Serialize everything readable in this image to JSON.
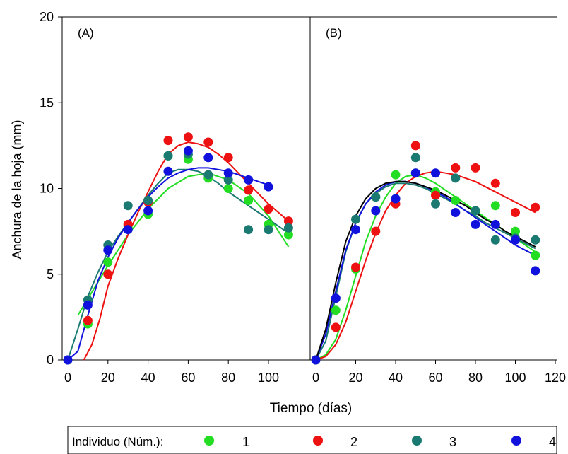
{
  "chart_data": [
    {
      "type": "scatter",
      "panel_label": "(A)",
      "xlim": [
        -5,
        120
      ],
      "ylim": [
        0,
        20
      ],
      "x_ticks": [
        "0",
        "20",
        "40",
        "60",
        "80",
        "100"
      ],
      "y_ticks": [
        "0",
        "5",
        "10",
        "15",
        "20"
      ],
      "series": [
        {
          "name": "1",
          "color": "#22dd22",
          "x": [
            0,
            10,
            20,
            30,
            40,
            50,
            60,
            70,
            80,
            90,
            100,
            110
          ],
          "y": [
            0,
            2.1,
            5.7,
            7.8,
            8.5,
            11.9,
            11.7,
            10.6,
            10.0,
            9.3,
            7.9,
            7.3
          ],
          "fit_x": [
            5,
            20,
            30,
            40,
            50,
            60,
            70,
            80,
            90,
            100,
            110
          ],
          "fit_y": [
            2.6,
            5.5,
            7.3,
            8.8,
            10.0,
            10.7,
            10.9,
            10.5,
            9.7,
            8.4,
            6.6
          ]
        },
        {
          "name": "2",
          "color": "#ee1111",
          "x": [
            10,
            20,
            30,
            40,
            50,
            60,
            70,
            80,
            90,
            100,
            110
          ],
          "y": [
            2.3,
            5.0,
            7.9,
            9.2,
            12.8,
            13.0,
            12.7,
            11.8,
            9.9,
            8.8,
            8.1
          ],
          "fit_x": [
            8,
            12,
            16,
            20,
            25,
            30,
            35,
            40,
            45,
            50,
            55,
            60,
            65,
            70,
            75,
            80,
            85,
            90,
            95,
            100,
            105,
            110
          ],
          "fit_y": [
            0,
            0.9,
            2.4,
            4.3,
            5.9,
            7.3,
            8.6,
            9.8,
            11.0,
            12.0,
            12.5,
            12.7,
            12.6,
            12.4,
            12.0,
            11.5,
            10.9,
            10.3,
            9.7,
            9.1,
            8.6,
            8.1
          ]
        },
        {
          "name": "3",
          "color": "#1a7a72",
          "x": [
            0,
            10,
            20,
            30,
            40,
            50,
            60,
            70,
            80,
            90,
            100,
            110
          ],
          "y": [
            0,
            3.5,
            6.7,
            9.0,
            9.3,
            11.9,
            12.0,
            10.8,
            10.5,
            7.6,
            7.6,
            7.7
          ],
          "fit_x": [
            0,
            5,
            10,
            15,
            20,
            25,
            30,
            35,
            40,
            45,
            50,
            55,
            60,
            65,
            70,
            75,
            80,
            85,
            90,
            95,
            100,
            105,
            110
          ],
          "fit_y": [
            0,
            1.8,
            3.7,
            5.1,
            6.3,
            7.2,
            8.0,
            8.8,
            9.6,
            10.3,
            10.9,
            11.1,
            11.1,
            11.0,
            10.7,
            10.3,
            9.8,
            9.4,
            9.0,
            8.6,
            8.2,
            7.8,
            7.4
          ]
        },
        {
          "name": "4",
          "color": "#1111dd",
          "x": [
            0,
            10,
            20,
            30,
            40,
            50,
            60,
            70,
            80,
            90,
            100
          ],
          "y": [
            0,
            3.2,
            6.4,
            7.6,
            8.7,
            11.0,
            12.2,
            11.8,
            10.9,
            10.5,
            10.1
          ],
          "fit_x": [
            0,
            5,
            10,
            15,
            20,
            25,
            30,
            35,
            40,
            45,
            50,
            55,
            60,
            65,
            70,
            75,
            80,
            85,
            90,
            95,
            100
          ],
          "fit_y": [
            0,
            0.5,
            2.6,
            4.6,
            6.0,
            7.1,
            8.0,
            8.8,
            9.5,
            10.1,
            10.6,
            10.9,
            11.1,
            11.2,
            11.2,
            11.1,
            11.0,
            10.8,
            10.6,
            10.4,
            10.2
          ]
        }
      ]
    },
    {
      "type": "scatter",
      "panel_label": "(B)",
      "xlim": [
        0,
        125
      ],
      "ylim": [
        0,
        20
      ],
      "x_ticks": [
        "0",
        "20",
        "40",
        "60",
        "80",
        "100",
        "120"
      ],
      "series": [
        {
          "name": "1",
          "color": "#22dd22",
          "x": [
            0,
            10,
            20,
            30,
            40,
            50,
            60,
            70,
            80,
            90,
            100,
            110
          ],
          "y": [
            0,
            2.9,
            5.3,
            9.5,
            10.8,
            10.9,
            9.8,
            9.3,
            8.7,
            9.0,
            7.5,
            6.1
          ],
          "fit_x": [
            0,
            5,
            10,
            15,
            20,
            25,
            30,
            35,
            40,
            45,
            50,
            55,
            60,
            65,
            70,
            75,
            80,
            85,
            90,
            95,
            100,
            105,
            110
          ],
          "fit_y": [
            0,
            0.3,
            1.2,
            2.9,
            4.9,
            6.9,
            8.4,
            9.5,
            10.3,
            10.7,
            10.8,
            10.6,
            10.3,
            9.9,
            9.5,
            9.1,
            8.7,
            8.3,
            7.9,
            7.5,
            7.1,
            6.7,
            6.3
          ]
        },
        {
          "name": "2",
          "color": "#ee1111",
          "x": [
            10,
            20,
            30,
            40,
            50,
            60,
            70,
            80,
            90,
            100,
            110
          ],
          "y": [
            1.9,
            5.4,
            7.5,
            9.1,
            12.5,
            9.6,
            11.2,
            11.2,
            10.3,
            8.6,
            8.9
          ],
          "fit_x": [
            0,
            5,
            10,
            15,
            20,
            25,
            30,
            35,
            40,
            45,
            50,
            55,
            60,
            65,
            70,
            75,
            80,
            85,
            90,
            95,
            100,
            105,
            110
          ],
          "fit_y": [
            0,
            0.2,
            0.9,
            2.2,
            4.0,
            5.8,
            7.4,
            8.7,
            9.6,
            10.3,
            10.7,
            10.9,
            11.0,
            10.9,
            10.8,
            10.6,
            10.4,
            10.1,
            9.8,
            9.5,
            9.2,
            8.9,
            8.6
          ]
        },
        {
          "name": "3",
          "color": "#1a7a72",
          "x": [
            0,
            10,
            20,
            30,
            40,
            50,
            60,
            70,
            80,
            90,
            100,
            110
          ],
          "y": [
            0,
            3.6,
            8.2,
            9.5,
            9.4,
            11.8,
            9.1,
            10.6,
            8.7,
            7.0,
            7.1,
            7.0
          ],
          "fit_x": [
            0,
            5,
            10,
            15,
            20,
            25,
            30,
            35,
            40,
            45,
            50,
            55,
            60,
            65,
            70,
            75,
            80,
            85,
            90,
            95,
            100,
            105,
            110
          ],
          "fit_y": [
            0,
            1.1,
            3.7,
            6.3,
            8.0,
            9.1,
            9.7,
            10.1,
            10.3,
            10.3,
            10.2,
            10.0,
            9.7,
            9.4,
            9.1,
            8.7,
            8.4,
            8.0,
            7.7,
            7.4,
            7.1,
            6.8,
            6.5
          ]
        },
        {
          "name": "4",
          "color": "#1111dd",
          "x": [
            0,
            10,
            20,
            30,
            40,
            50,
            60,
            70,
            80,
            90,
            100,
            110
          ],
          "y": [
            0,
            3.6,
            7.6,
            8.7,
            9.4,
            10.9,
            10.9,
            8.6,
            7.9,
            7.9,
            7.0,
            5.2
          ],
          "fit_x": [
            0,
            5,
            10,
            15,
            20,
            25,
            30,
            35,
            40,
            45,
            50,
            55,
            60,
            65,
            70,
            75,
            80,
            85,
            90,
            95,
            100,
            105,
            110
          ],
          "fit_y": [
            0,
            1.5,
            4.0,
            6.4,
            8.0,
            9.1,
            9.8,
            10.2,
            10.4,
            10.4,
            10.3,
            10.1,
            9.8,
            9.5,
            9.1,
            8.7,
            8.3,
            7.9,
            7.5,
            7.1,
            6.7,
            6.4,
            6.1
          ]
        },
        {
          "name": "",
          "color": "#000000",
          "x": [],
          "y": [],
          "fit_x": [
            0,
            5,
            10,
            15,
            20,
            25,
            30,
            35,
            40,
            45,
            50,
            55,
            60,
            65,
            70,
            75,
            80,
            85,
            90,
            95,
            100,
            105,
            110
          ],
          "fit_y": [
            0,
            1.8,
            4.5,
            6.9,
            8.4,
            9.4,
            10.0,
            10.3,
            10.4,
            10.4,
            10.3,
            10.1,
            9.9,
            9.6,
            9.3,
            9.0,
            8.6,
            8.2,
            7.9,
            7.5,
            7.2,
            6.9,
            6.6
          ]
        }
      ]
    }
  ],
  "ylabel": "Anchura de la hoja (mm)",
  "xlabel": "Tiempo (días)",
  "legend": {
    "title": "Individuo (Núm.):",
    "entries": [
      {
        "label": "1",
        "color": "#22dd22"
      },
      {
        "label": "2",
        "color": "#ee1111"
      },
      {
        "label": "3",
        "color": "#1a7a72"
      },
      {
        "label": "4",
        "color": "#1111dd"
      }
    ]
  }
}
